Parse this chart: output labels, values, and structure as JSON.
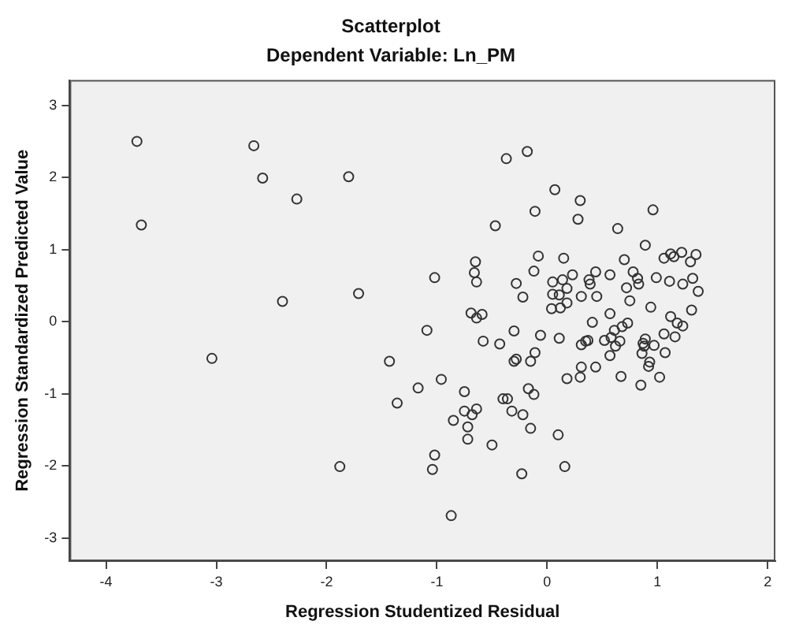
{
  "chart_data": {
    "type": "scatter",
    "title": "Scatterplot",
    "subtitle": "Dependent Variable: Ln_PM",
    "xlabel": "Regression Studentized Residual",
    "ylabel": "Regression Standardized Predicted Value",
    "xlim": [
      -4.33,
      2.07
    ],
    "ylim": [
      -3.32,
      3.35
    ],
    "xticks": [
      -4,
      -3,
      -2,
      -1,
      0,
      1,
      2
    ],
    "yticks": [
      -3,
      -2,
      -1,
      0,
      1,
      2,
      3
    ],
    "grid": false,
    "legend": false,
    "marker": "circle",
    "series": [
      {
        "color": "#333333",
        "x": [
          -3.72,
          -3.68,
          -2.66,
          -2.58,
          -2.27,
          -1.8,
          -2.4,
          -1.71,
          -3.04,
          -1.43,
          -1.36,
          -1.17,
          -1.88,
          -0.37,
          -0.18,
          0.07,
          0.3,
          -0.11,
          0.28,
          0.96,
          -0.47,
          0.64,
          0.89,
          -0.65,
          -0.66,
          -0.64,
          -1.02,
          -0.08,
          0.15,
          -0.12,
          -0.28,
          -0.22,
          0.05,
          0.14,
          0.23,
          0.18,
          0.05,
          0.11,
          0.18,
          0.04,
          0.12,
          0.31,
          0.38,
          0.39,
          0.44,
          0.45,
          0.57,
          0.7,
          0.78,
          0.82,
          0.83,
          0.72,
          0.75,
          0.94,
          0.99,
          1.11,
          1.23,
          1.32,
          1.37,
          1.06,
          1.12,
          1.15,
          1.22,
          1.35,
          1.3,
          0.57,
          0.41,
          1.12,
          1.18,
          1.23,
          1.31,
          -0.69,
          -0.64,
          -0.59,
          -1.09,
          -0.3,
          -0.58,
          -0.43,
          -0.06,
          0.11,
          0.31,
          0.35,
          0.37,
          0.52,
          0.58,
          0.61,
          0.68,
          0.73,
          0.66,
          0.62,
          0.57,
          0.89,
          0.87,
          0.88,
          0.86,
          0.97,
          1.06,
          1.16,
          1.07,
          -0.11,
          -0.28,
          -0.3,
          -0.15,
          -0.96,
          -0.75,
          0.18,
          0.3,
          0.31,
          0.44,
          0.67,
          0.85,
          1.02,
          0.92,
          0.93,
          -0.75,
          -0.85,
          -0.68,
          -0.64,
          -0.72,
          -0.72,
          -0.5,
          -0.4,
          -0.36,
          -0.32,
          -0.22,
          -0.15,
          -0.17,
          -0.12,
          0.1,
          -1.02,
          -1.04,
          -0.23,
          0.16,
          -0.87
        ],
        "values": [
          2.5,
          1.34,
          2.44,
          1.99,
          1.7,
          2.01,
          0.28,
          0.39,
          -0.51,
          -0.55,
          -1.13,
          -0.92,
          -2.01,
          2.26,
          2.36,
          1.83,
          1.68,
          1.53,
          1.42,
          1.55,
          1.33,
          1.29,
          1.06,
          0.83,
          0.68,
          0.55,
          0.61,
          0.91,
          0.88,
          0.7,
          0.53,
          0.34,
          0.55,
          0.58,
          0.65,
          0.46,
          0.38,
          0.37,
          0.26,
          0.18,
          0.19,
          0.35,
          0.58,
          0.52,
          0.69,
          0.35,
          0.65,
          0.86,
          0.69,
          0.6,
          0.52,
          0.47,
          0.29,
          0.2,
          0.61,
          0.56,
          0.52,
          0.6,
          0.42,
          0.88,
          0.94,
          0.9,
          0.96,
          0.93,
          0.83,
          0.11,
          -0.01,
          0.07,
          -0.02,
          -0.06,
          0.16,
          0.12,
          0.05,
          0.1,
          -0.12,
          -0.13,
          -0.27,
          -0.31,
          -0.19,
          -0.23,
          -0.32,
          -0.27,
          -0.26,
          -0.26,
          -0.22,
          -0.12,
          -0.07,
          -0.02,
          -0.27,
          -0.34,
          -0.47,
          -0.24,
          -0.3,
          -0.34,
          -0.44,
          -0.33,
          -0.17,
          -0.21,
          -0.43,
          -0.43,
          -0.52,
          -0.55,
          -0.55,
          -0.8,
          -0.97,
          -0.79,
          -0.77,
          -0.63,
          -0.63,
          -0.76,
          -0.88,
          -0.77,
          -0.62,
          -0.56,
          -1.24,
          -1.37,
          -1.29,
          -1.21,
          -1.46,
          -1.63,
          -1.71,
          -1.07,
          -1.07,
          -1.24,
          -1.29,
          -1.48,
          -0.93,
          -1.01,
          -1.57,
          -1.85,
          -2.05,
          -2.11,
          -2.01,
          -2.69
        ]
      }
    ]
  }
}
